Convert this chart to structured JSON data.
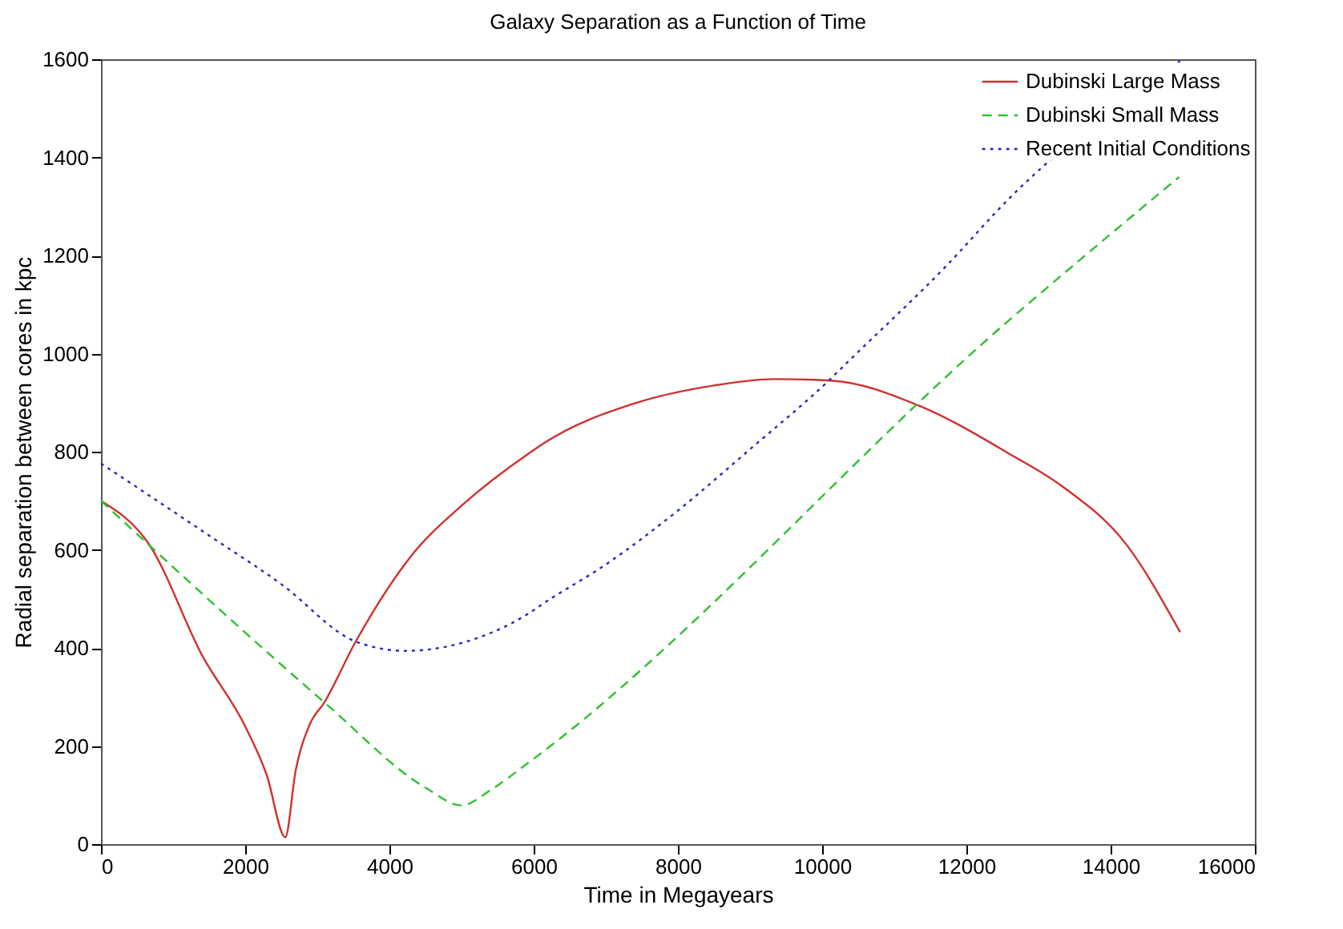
{
  "chart_data": {
    "type": "line",
    "title": "Galaxy Separation as a Function of Time",
    "xlabel": "Time in Megayears",
    "ylabel": "Radial separation between cores in kpc",
    "xlim": [
      0,
      16000
    ],
    "xticks": [
      0,
      2000,
      4000,
      6000,
      8000,
      10000,
      12000,
      14000,
      16000
    ],
    "ylim": [
      0,
      1600
    ],
    "yticks": [
      0,
      200,
      400,
      600,
      800,
      1000,
      1200,
      1400,
      1600
    ],
    "grid": false,
    "legend": "top right",
    "marker": "none",
    "series": [
      {
        "name": "Dubinski Large Mass",
        "color": "#d03030",
        "line_style": "solid",
        "x": [
          0,
          667,
          1409,
          2000,
          2300,
          2556,
          2700,
          2889,
          3098,
          3533,
          4371,
          5000,
          5927,
          6149,
          7409,
          8500,
          9333,
          10127,
          11371,
          12592,
          13333,
          14222,
          14964
        ],
        "values": [
          700,
          611,
          383,
          240,
          140,
          14,
          150,
          242,
          289,
          413,
          600,
          690,
          796,
          818,
          899,
          935,
          948,
          945,
          892,
          796,
          729,
          610,
          432
        ]
      },
      {
        "name": "Dubinski Small Mass",
        "color": "#30c030",
        "line_style": "dashed",
        "x": [
          0,
          3098,
          4500,
          5000,
          5400,
          5927,
          12592,
          14949
        ],
        "values": [
          700,
          289,
          115,
          79,
          110,
          166,
          1068,
          1360
        ]
      },
      {
        "name": "Recent Initial Conditions",
        "color": "#2828c0",
        "line_style": "dotted",
        "x": [
          0,
          1409,
          2500,
          3533,
          4222,
          5000,
          5927,
          6149,
          7000,
          8000,
          9000,
          10127,
          10370,
          11704,
          12592,
          15000
        ],
        "values": [
          776,
          638,
          530,
          413,
          394,
          410,
          470,
          492,
          570,
          680,
          805,
          950,
          985,
          1176,
          1316,
          1600
        ]
      }
    ]
  }
}
